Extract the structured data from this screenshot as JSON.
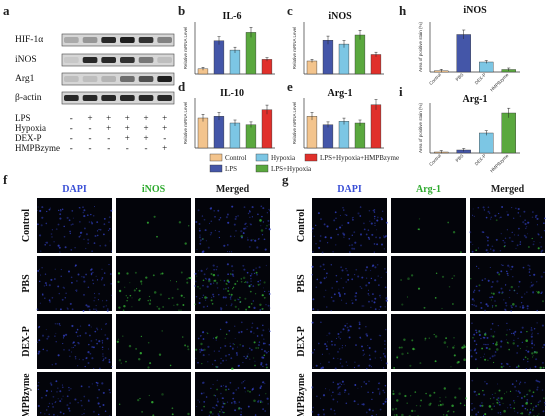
{
  "panel_letters": [
    "a",
    "b",
    "c",
    "d",
    "e",
    "h",
    "i",
    "f",
    "g"
  ],
  "western_blot": {
    "proteins": [
      "HIF-1α",
      "iNOS",
      "Arg1",
      "β-actin"
    ],
    "treatments": [
      {
        "name": "LPS",
        "signs": [
          "-",
          "+",
          "+",
          "+",
          "+",
          "+"
        ]
      },
      {
        "name": "Hypoxia",
        "signs": [
          "-",
          "-",
          "+",
          "+",
          "+",
          "+"
        ]
      },
      {
        "name": "DEX-P",
        "signs": [
          "-",
          "-",
          "-",
          "+",
          "+",
          "-"
        ]
      },
      {
        "name": "HMPBzyme",
        "signs": [
          "-",
          "-",
          "-",
          "-",
          "-",
          "+"
        ]
      }
    ]
  },
  "pcr_ylabel": "Relative mRNA Level",
  "legend": [
    {
      "label": "Control",
      "color": "#f3c48d"
    },
    {
      "label": "Hypoxia",
      "color": "#7cc6e4"
    },
    {
      "label": "LPS+Hypoxia+HMPBzyme",
      "color": "#e0302b"
    },
    {
      "label": "LPS",
      "color": "#4456a8"
    },
    {
      "label": "LPS+Hypoxia",
      "color": "#5aa83e"
    }
  ],
  "chart_data": [
    {
      "type": "bar",
      "title": "IL-6",
      "categories": [
        "Control",
        "LPS",
        "Hypoxia",
        "LPS+Hypoxia",
        "LPS+Hypoxia+HMPBzyme"
      ],
      "values": [
        0.5,
        3.2,
        2.3,
        4.0,
        1.4
      ],
      "ylabel": "Relative mRNA Level",
      "ylim": [
        0,
        5
      ]
    },
    {
      "type": "bar",
      "title": "iNOS",
      "categories": [
        "Control",
        "LPS",
        "Hypoxia",
        "LPS+Hypoxia",
        "LPS+Hypoxia+HMPBzyme"
      ],
      "values": [
        1.0,
        2.6,
        2.3,
        3.0,
        1.5
      ],
      "ylabel": "Relative mRNA Level",
      "ylim": [
        0,
        4
      ]
    },
    {
      "type": "bar",
      "title": "IL-10",
      "categories": [
        "Control",
        "LPS",
        "Hypoxia",
        "LPS+Hypoxia",
        "LPS+Hypoxia+HMPBzyme"
      ],
      "values": [
        0.9,
        0.95,
        0.75,
        0.7,
        1.15
      ],
      "ylabel": "Relative mRNA Level",
      "ylim": [
        0,
        1.5
      ]
    },
    {
      "type": "bar",
      "title": "Arg-1",
      "categories": [
        "Control",
        "LPS",
        "Hypoxia",
        "LPS+Hypoxia",
        "LPS+Hypoxia+HMPBzyme"
      ],
      "values": [
        0.95,
        0.7,
        0.8,
        0.75,
        1.3
      ],
      "ylabel": "Relative mRNA Level",
      "ylim": [
        0,
        1.5
      ]
    },
    {
      "type": "bar",
      "title": "iNOS",
      "categories": [
        "Control",
        "PBS",
        "DEX-P",
        "HMPBzyme"
      ],
      "values": [
        1,
        30,
        8,
        2
      ],
      "ylabel": "Area of positive stain (%)",
      "ylim": [
        0,
        40
      ]
    },
    {
      "type": "bar",
      "title": "Arg-1",
      "categories": [
        "Control",
        "PBS",
        "DEX-P",
        "HMPBzyme"
      ],
      "values": [
        0.5,
        1.5,
        10,
        20
      ],
      "ylabel": "Area of positive stain (%)",
      "ylim": [
        0,
        25
      ]
    }
  ],
  "stain_area_colors": [
    "#f3c48d",
    "#4456a8",
    "#7cc6e4",
    "#5aa83e"
  ],
  "micro": {
    "f": {
      "columns": [
        "DAPI",
        "iNOS",
        "Merged"
      ],
      "column_colors": [
        "#3a4fd6",
        "#2eaa2e",
        "#222222"
      ],
      "rows": [
        "Control",
        "PBS",
        "DEX-P",
        "HMPBzyme"
      ]
    },
    "g": {
      "columns": [
        "DAPI",
        "Arg-1",
        "Merged"
      ],
      "column_colors": [
        "#3a4fd6",
        "#2eaa2e",
        "#222222"
      ],
      "rows": [
        "Control",
        "PBS",
        "DEX-P",
        "HMPBzyme"
      ]
    }
  }
}
